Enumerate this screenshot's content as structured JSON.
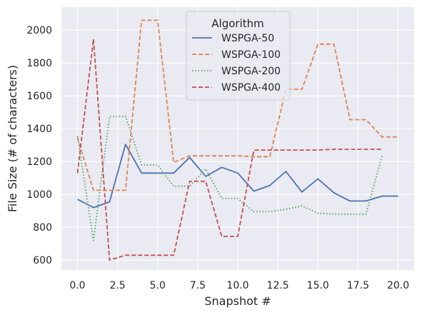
{
  "chart_data": {
    "type": "line",
    "xlabel": "Snapshot #",
    "ylabel": "File Size (# of characters)",
    "xlim": [
      -1.0,
      21.0
    ],
    "ylim": [
      540,
      2140
    ],
    "xticks": [
      0.0,
      2.5,
      5.0,
      7.5,
      10.0,
      12.5,
      15.0,
      17.5,
      20.0
    ],
    "xtick_labels": [
      "0.0",
      "2.5",
      "5.0",
      "7.5",
      "10.0",
      "12.5",
      "15.0",
      "17.5",
      "20.0"
    ],
    "yticks": [
      600,
      800,
      1000,
      1200,
      1400,
      1600,
      1800,
      2000
    ],
    "ytick_labels": [
      "600",
      "800",
      "1000",
      "1200",
      "1400",
      "1600",
      "1800",
      "2000"
    ],
    "grid": true,
    "legend": {
      "title": "Algorithm",
      "placement": "top-center"
    },
    "series": [
      {
        "name": "WSPGA-50",
        "color": "#4c72b0",
        "dash": "solid",
        "x": [
          0,
          1,
          2,
          3,
          4,
          5,
          6,
          7,
          8,
          9,
          10,
          11,
          12,
          13,
          14,
          15,
          16,
          17,
          18,
          19,
          20
        ],
        "y": [
          970,
          920,
          955,
          1305,
          1130,
          1130,
          1130,
          1225,
          1110,
          1165,
          1130,
          1020,
          1055,
          1140,
          1015,
          1095,
          1010,
          960,
          960,
          990,
          990
        ]
      },
      {
        "name": "WSPGA-100",
        "color": "#dd8452",
        "dash": "dashed",
        "x": [
          0,
          1,
          2,
          3,
          4,
          5,
          6,
          7,
          8,
          9,
          10,
          11,
          12,
          13,
          14,
          15,
          16,
          17,
          18,
          19,
          20
        ],
        "y": [
          1345,
          1025,
          1025,
          1025,
          2060,
          2060,
          1195,
          1235,
          1235,
          1235,
          1235,
          1230,
          1230,
          1640,
          1640,
          1915,
          1915,
          1455,
          1455,
          1350,
          1350
        ]
      },
      {
        "name": "WSPGA-200",
        "color": "#55a868",
        "dash": "dotted",
        "x": [
          0,
          1,
          2,
          3,
          4,
          5,
          6,
          7,
          8,
          9,
          10,
          11,
          12,
          13,
          14,
          15,
          16,
          17,
          18,
          19
        ],
        "y": [
          1355,
          720,
          1475,
          1475,
          1180,
          1180,
          1050,
          1050,
          1155,
          975,
          975,
          895,
          895,
          910,
          930,
          885,
          880,
          880,
          880,
          1235
        ]
      },
      {
        "name": "WSPGA-400",
        "color": "#c44e52",
        "dash": "dashed",
        "x": [
          0,
          1,
          2,
          3,
          4,
          5,
          6,
          7,
          8,
          9,
          10,
          11,
          12,
          13,
          14,
          15,
          16,
          17,
          18,
          19
        ],
        "y": [
          1130,
          1945,
          600,
          630,
          630,
          630,
          630,
          1080,
          1080,
          745,
          745,
          1270,
          1270,
          1270,
          1270,
          1270,
          1275,
          1275,
          1275,
          1275
        ]
      }
    ]
  }
}
